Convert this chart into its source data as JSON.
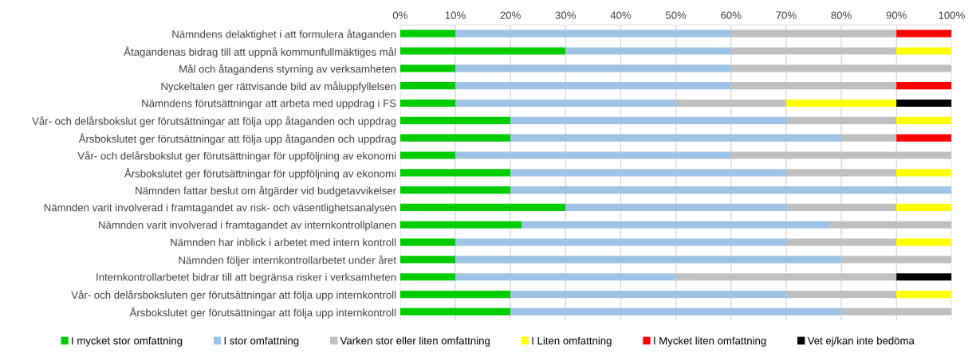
{
  "chart_data": {
    "type": "bar",
    "orientation": "horizontal",
    "stacked": true,
    "categories": [
      "Nämndens delaktighet i att formulera åtaganden",
      "Åtagandenas bidrag till att uppnå kommunfullmäktiges mål",
      "Mål och åtagandens styrning av verksamheten",
      "Nyckeltalen ger rättvisande bild av måluppfyllelsen",
      "Nämndens förutsättningar att arbeta med uppdrag i FS",
      "Vår- och delårsbokslut ger förutsättningar att följa upp åtaganden och uppdrag",
      "Årsbokslutet ger förutsättningar att följa upp åtaganden och uppdrag",
      "Vår- och delårsbokslut ger förutsättningar för uppföljning av ekonomi",
      "Årsbokslutet ger förutsättningar för uppföljning av ekonomi",
      "Nämnden fattar beslut om åtgärder vid budgetavvikelser",
      "Nämnden varit involverad i framtagandet av risk- och väsentlighetsanalysen",
      "Nämnden varit involverad i framtagandet av internkontrollplanen",
      "Nämnden har inblick i arbetet med intern kontroll",
      "Nämnden följer internkontrollarbetet under året",
      "Internkontrollarbetet bidrar till att begränsa risker i verksamheten",
      "Vår- och delårsboksluten ger förutsättningar att följa upp internkontroll",
      "Årsbokslutet ger förutsättningar att följa upp internkontroll"
    ],
    "series": [
      {
        "name": "I mycket stor omfattning",
        "color": "#00cc00",
        "values": [
          10,
          30,
          10,
          10,
          10,
          20,
          20,
          10,
          20,
          20,
          30,
          22,
          10,
          10,
          10,
          20,
          20
        ]
      },
      {
        "name": "I stor omfattning",
        "color": "#9dc3e6",
        "values": [
          50,
          30,
          50,
          50,
          40,
          50,
          60,
          50,
          50,
          80,
          40,
          56,
          60,
          70,
          40,
          50,
          60
        ]
      },
      {
        "name": "Varken stor eller liten omfattning",
        "color": "#bfbfbf",
        "values": [
          30,
          30,
          40,
          30,
          20,
          20,
          10,
          40,
          20,
          0,
          20,
          22,
          20,
          20,
          40,
          20,
          20
        ]
      },
      {
        "name": "I Liten omfattning",
        "color": "#ffff00",
        "values": [
          0,
          10,
          0,
          0,
          20,
          10,
          0,
          0,
          10,
          0,
          10,
          0,
          10,
          0,
          0,
          10,
          0
        ]
      },
      {
        "name": "I Mycket liten omfattning",
        "color": "#ff0000",
        "values": [
          10,
          0,
          0,
          10,
          0,
          0,
          10,
          0,
          0,
          0,
          0,
          0,
          0,
          0,
          0,
          0,
          0
        ]
      },
      {
        "name": "Vet ej/kan inte bedöma",
        "color": "#000000",
        "values": [
          0,
          0,
          0,
          0,
          10,
          0,
          0,
          0,
          0,
          0,
          0,
          0,
          0,
          0,
          10,
          0,
          0
        ]
      }
    ],
    "xlim": [
      0,
      100
    ],
    "xticks": [
      {
        "value": 0,
        "label": "0%"
      },
      {
        "value": 10,
        "label": "10%"
      },
      {
        "value": 20,
        "label": "20%"
      },
      {
        "value": 30,
        "label": "30%"
      },
      {
        "value": 40,
        "label": "40%"
      },
      {
        "value": 50,
        "label": "50%"
      },
      {
        "value": 60,
        "label": "60%"
      },
      {
        "value": 70,
        "label": "70%"
      },
      {
        "value": 80,
        "label": "80%"
      },
      {
        "value": 90,
        "label": "90%"
      },
      {
        "value": 100,
        "label": "100%"
      }
    ],
    "grid": "x",
    "legend": "bottom"
  }
}
